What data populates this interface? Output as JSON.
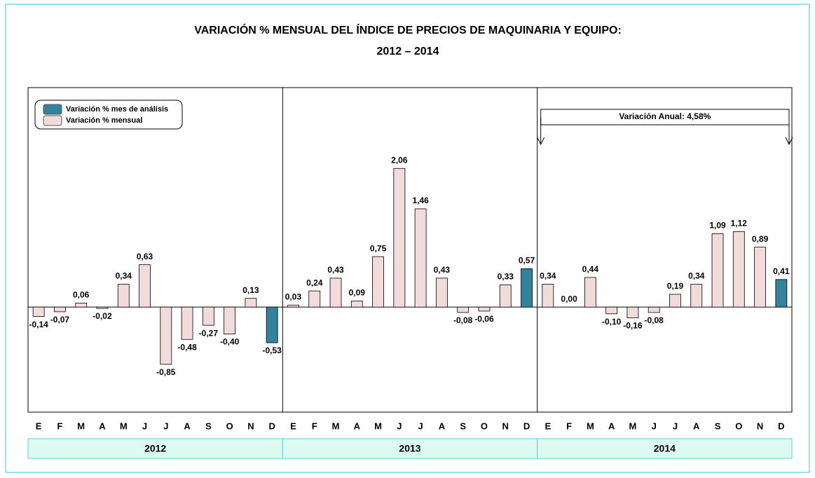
{
  "chart_data": {
    "type": "bar",
    "title": "VARIACIÓN % MENSUAL DEL ÍNDICE DE PRECIOS DE MAQUINARIA Y EQUIPO:",
    "subtitle": "2012 – 2014",
    "categories": [
      "E",
      "F",
      "M",
      "A",
      "M",
      "J",
      "J",
      "A",
      "S",
      "O",
      "N",
      "D",
      "E",
      "F",
      "M",
      "A",
      "M",
      "J",
      "J",
      "A",
      "S",
      "O",
      "N",
      "D",
      "E",
      "F",
      "M",
      "A",
      "M",
      "J",
      "J",
      "A",
      "S",
      "O",
      "N",
      "D"
    ],
    "years": [
      "2012",
      "2013",
      "2014"
    ],
    "ylim": [
      -1.56,
      3.26
    ],
    "annotation": "Variación Anual: 4,58%",
    "series": [
      {
        "name": "Variación % mes de análisis",
        "color": "#31849b",
        "values": [
          null,
          null,
          null,
          null,
          null,
          null,
          null,
          null,
          null,
          null,
          null,
          -0.53,
          null,
          null,
          null,
          null,
          null,
          null,
          null,
          null,
          null,
          null,
          null,
          0.57,
          null,
          null,
          null,
          null,
          null,
          null,
          null,
          null,
          null,
          null,
          null,
          0.41
        ],
        "value_labels": [
          null,
          null,
          null,
          null,
          null,
          null,
          null,
          null,
          null,
          null,
          null,
          "-0,53",
          null,
          null,
          null,
          null,
          null,
          null,
          null,
          null,
          null,
          null,
          null,
          "0,57",
          null,
          null,
          null,
          null,
          null,
          null,
          null,
          null,
          null,
          null,
          null,
          "0,41"
        ]
      },
      {
        "name": "Variación % mensual",
        "color": "#f2dcdb",
        "values": [
          -0.14,
          -0.07,
          0.06,
          -0.02,
          0.34,
          0.63,
          -0.85,
          -0.48,
          -0.27,
          -0.4,
          0.13,
          null,
          0.03,
          0.24,
          0.43,
          0.09,
          0.75,
          2.06,
          1.46,
          0.43,
          -0.08,
          -0.06,
          0.33,
          null,
          0.34,
          0.0,
          0.44,
          -0.1,
          -0.16,
          -0.08,
          0.19,
          0.34,
          1.09,
          1.12,
          0.89,
          null
        ],
        "value_labels": [
          "-0,14",
          "-0,07",
          "0,06",
          "-0,02",
          "0,34",
          "0,63",
          "-0,85",
          "-0,48",
          "-0,27",
          "-0,40",
          "0,13",
          null,
          "0,03",
          "0,24",
          "0,43",
          "0,09",
          "0,75",
          "2,06",
          "1,46",
          "0,43",
          "-0,08",
          "-0,06",
          "0,33",
          null,
          "0,34",
          "0,00",
          "0,44",
          "-0,10",
          "-0,16",
          "-0,08",
          "0,19",
          "0,34",
          "1,09",
          "1,12",
          "0,89",
          null
        ]
      }
    ]
  }
}
